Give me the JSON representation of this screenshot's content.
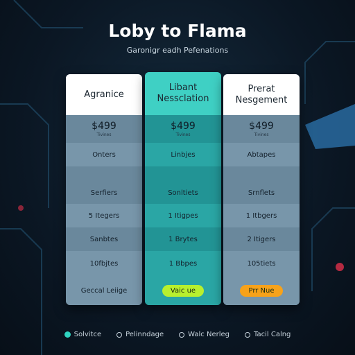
{
  "header": {
    "title": "Loby to Flama",
    "subtitle": "Garonigr eadh Pefenations"
  },
  "plans": [
    {
      "name": [
        "Agranice"
      ],
      "price": "$499",
      "price_note": "Tivines",
      "features": [
        "Onters",
        "Serfiers",
        "5 Itegers",
        "Sanbtes",
        "10fbjtes"
      ],
      "cta": "Geccal Leiige"
    },
    {
      "name": [
        "Libant",
        "Nessclation"
      ],
      "price": "$499",
      "price_note": "Tivines",
      "features": [
        "Linbjes",
        "Sonltiets",
        "1 Itigpes",
        "1 Brytes",
        "1 Bbpes"
      ],
      "cta": "Vaic ue"
    },
    {
      "name": [
        "Prerat",
        "Nesgement"
      ],
      "price": "$499",
      "price_note": "Tivines",
      "features": [
        "Abtapes",
        "Srnflets",
        "1 Itbgers",
        "2 Itigers",
        "105tiets"
      ],
      "cta": "Prr Nue"
    }
  ],
  "legend": [
    "Solvitce",
    "Pelinndage",
    "Walc Nerleg",
    "Tacil Calng"
  ]
}
